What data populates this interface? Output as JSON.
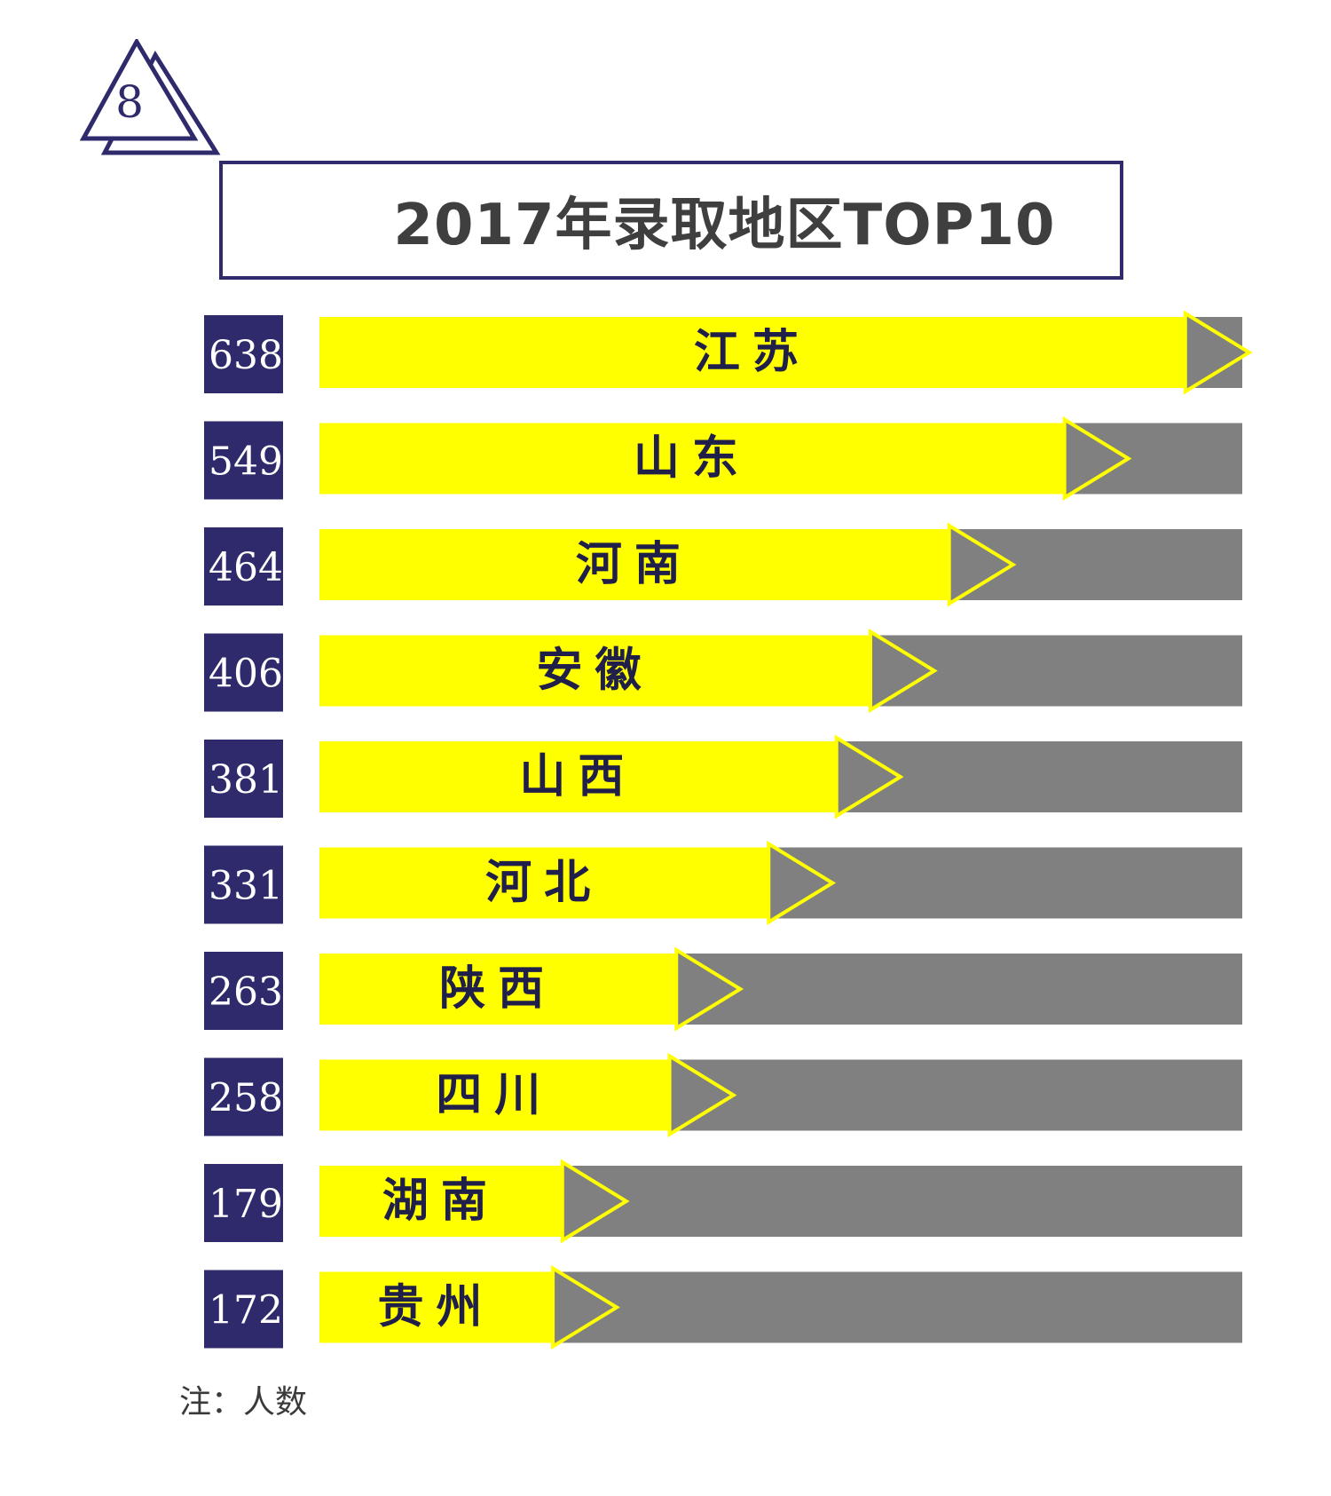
{
  "badge": {
    "number": "8"
  },
  "note": "注：人数",
  "colors": {
    "navy": "#2e2a6b",
    "bar": "#ffff00",
    "track": "#808080",
    "label": "#1f1f4a"
  },
  "chart_data": {
    "type": "bar",
    "orientation": "horizontal",
    "title": "2017年录取地区TOP10",
    "categories": [
      "江苏",
      "山东",
      "河南",
      "安徽",
      "山西",
      "河北",
      "陕西",
      "四川",
      "湖南",
      "贵州"
    ],
    "values": [
      638,
      549,
      464,
      406,
      381,
      331,
      263,
      258,
      179,
      172
    ],
    "value_labels": [
      "638",
      "549",
      "464",
      "406",
      "381",
      "331",
      "263",
      "258",
      "179",
      "172"
    ],
    "xlim": [
      0,
      680
    ],
    "grid": false,
    "legend": "none"
  }
}
